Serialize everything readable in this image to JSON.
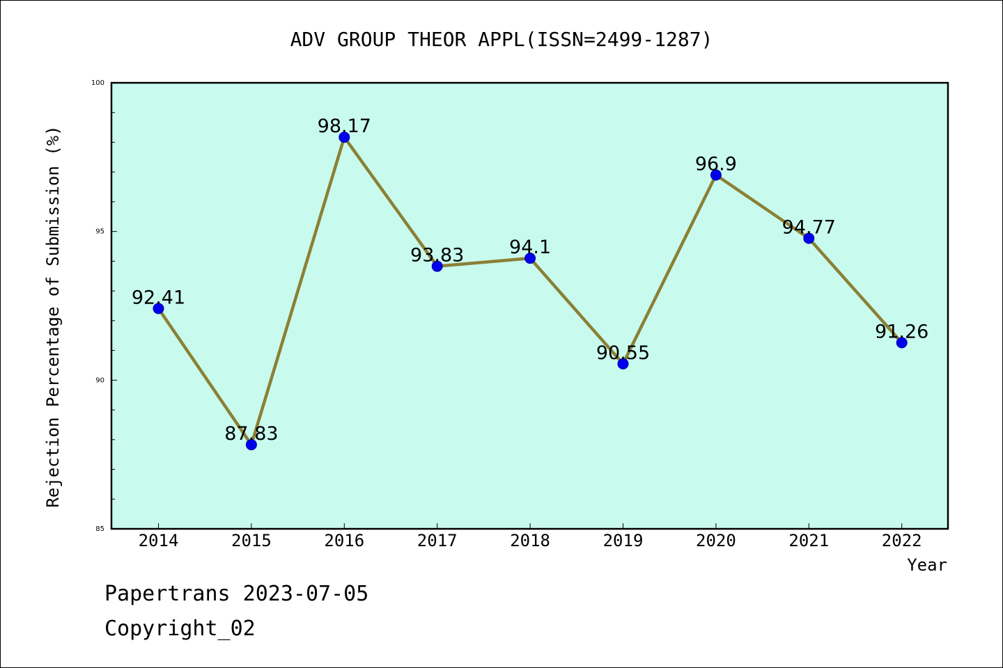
{
  "chart_data": {
    "type": "line",
    "title": "ADV GROUP THEOR APPL(ISSN=2499-1287)",
    "xlabel": "Year",
    "ylabel": "Rejection Percentage of Submission (%)",
    "categories": [
      "2014",
      "2015",
      "2016",
      "2017",
      "2018",
      "2019",
      "2020",
      "2021",
      "2022"
    ],
    "values": [
      92.41,
      87.83,
      98.17,
      93.83,
      94.1,
      90.55,
      96.9,
      94.77,
      91.26
    ],
    "value_labels": [
      "92.41",
      "87.83",
      "98.17",
      "93.83",
      "94.1",
      "90.55",
      "96.9",
      "94.77",
      "91.26"
    ],
    "ylim": [
      85,
      100
    ],
    "yticks": [
      "85",
      "90",
      "95",
      "100"
    ],
    "grid": false,
    "line_color": "#8b8035",
    "marker_color": "#0000ee",
    "plot_background": "#c8fbee"
  },
  "footer": {
    "line1": "Papertrans 2023-07-05",
    "line2": "Copyright_02"
  }
}
